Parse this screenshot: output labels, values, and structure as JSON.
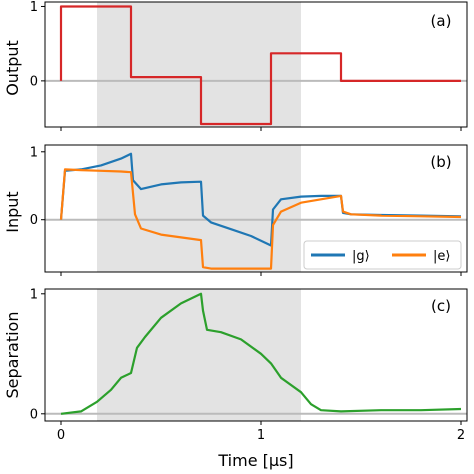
{
  "chart_data": [
    {
      "type": "line",
      "panel_label": "(a)",
      "ylabel": "Output",
      "xlim": [
        -0.08,
        2.03
      ],
      "ylim": [
        -0.62,
        1.06
      ],
      "yticks": [
        0,
        1
      ],
      "shaded_region": [
        0.18,
        1.2
      ],
      "series": [
        {
          "color": "#d62728",
          "x": [
            0.0,
            0.0,
            0.35,
            0.35,
            0.7,
            0.7,
            1.05,
            1.05,
            1.4,
            1.4,
            2.0
          ],
          "y": [
            0.0,
            1.0,
            1.0,
            0.05,
            0.05,
            -0.58,
            -0.58,
            0.37,
            0.37,
            0.0,
            0.0
          ]
        }
      ]
    },
    {
      "type": "line",
      "panel_label": "(b)",
      "ylabel": "Input",
      "xlim": [
        -0.08,
        2.03
      ],
      "ylim": [
        -0.77,
        1.1
      ],
      "yticks": [
        0,
        1
      ],
      "shaded_region": [
        0.18,
        1.2
      ],
      "legend": {
        "placement": "lower-right",
        "entries": [
          "|g⟩",
          "|e⟩"
        ]
      },
      "series": [
        {
          "name": "|g⟩",
          "color": "#1f77b4",
          "x": [
            0.0,
            0.02,
            0.1,
            0.2,
            0.3,
            0.35,
            0.36,
            0.4,
            0.5,
            0.6,
            0.7,
            0.71,
            0.75,
            0.85,
            0.95,
            1.05,
            1.06,
            1.1,
            1.2,
            1.3,
            1.4,
            1.41,
            1.45,
            1.6,
            1.8,
            2.0
          ],
          "y": [
            0.0,
            0.72,
            0.74,
            0.8,
            0.9,
            0.97,
            0.58,
            0.45,
            0.52,
            0.55,
            0.56,
            0.06,
            -0.04,
            -0.14,
            -0.24,
            -0.38,
            0.15,
            0.3,
            0.34,
            0.35,
            0.35,
            0.1,
            0.08,
            0.07,
            0.06,
            0.05
          ]
        },
        {
          "name": "|e⟩",
          "color": "#ff7f0e",
          "x": [
            0.0,
            0.02,
            0.1,
            0.2,
            0.3,
            0.35,
            0.37,
            0.4,
            0.5,
            0.6,
            0.7,
            0.71,
            0.75,
            0.85,
            0.95,
            1.05,
            1.06,
            1.1,
            1.2,
            1.3,
            1.4,
            1.41,
            1.45,
            1.6,
            1.8,
            2.0
          ],
          "y": [
            0.0,
            0.74,
            0.73,
            0.72,
            0.71,
            0.7,
            0.08,
            -0.13,
            -0.22,
            -0.26,
            -0.3,
            -0.7,
            -0.72,
            -0.72,
            -0.72,
            -0.72,
            -0.08,
            0.12,
            0.25,
            0.3,
            0.35,
            0.12,
            0.08,
            0.06,
            0.05,
            0.04
          ]
        }
      ]
    },
    {
      "type": "line",
      "panel_label": "(c)",
      "ylabel": "Separation",
      "xlabel": "Time [µs]",
      "xlim": [
        -0.08,
        2.03
      ],
      "ylim": [
        -0.06,
        1.04
      ],
      "xticks": [
        0,
        1,
        2
      ],
      "yticks": [
        0,
        1
      ],
      "shaded_region": [
        0.18,
        1.2
      ],
      "series": [
        {
          "color": "#2ca02c",
          "x": [
            0.0,
            0.1,
            0.18,
            0.25,
            0.3,
            0.35,
            0.38,
            0.42,
            0.5,
            0.6,
            0.7,
            0.71,
            0.73,
            0.8,
            0.9,
            1.0,
            1.05,
            1.1,
            1.2,
            1.25,
            1.3,
            1.4,
            1.6,
            1.8,
            2.0
          ],
          "y": [
            0.0,
            0.02,
            0.1,
            0.2,
            0.3,
            0.34,
            0.55,
            0.64,
            0.8,
            0.92,
            1.0,
            0.86,
            0.7,
            0.68,
            0.62,
            0.5,
            0.42,
            0.3,
            0.18,
            0.08,
            0.03,
            0.02,
            0.03,
            0.03,
            0.04
          ]
        }
      ]
    }
  ]
}
